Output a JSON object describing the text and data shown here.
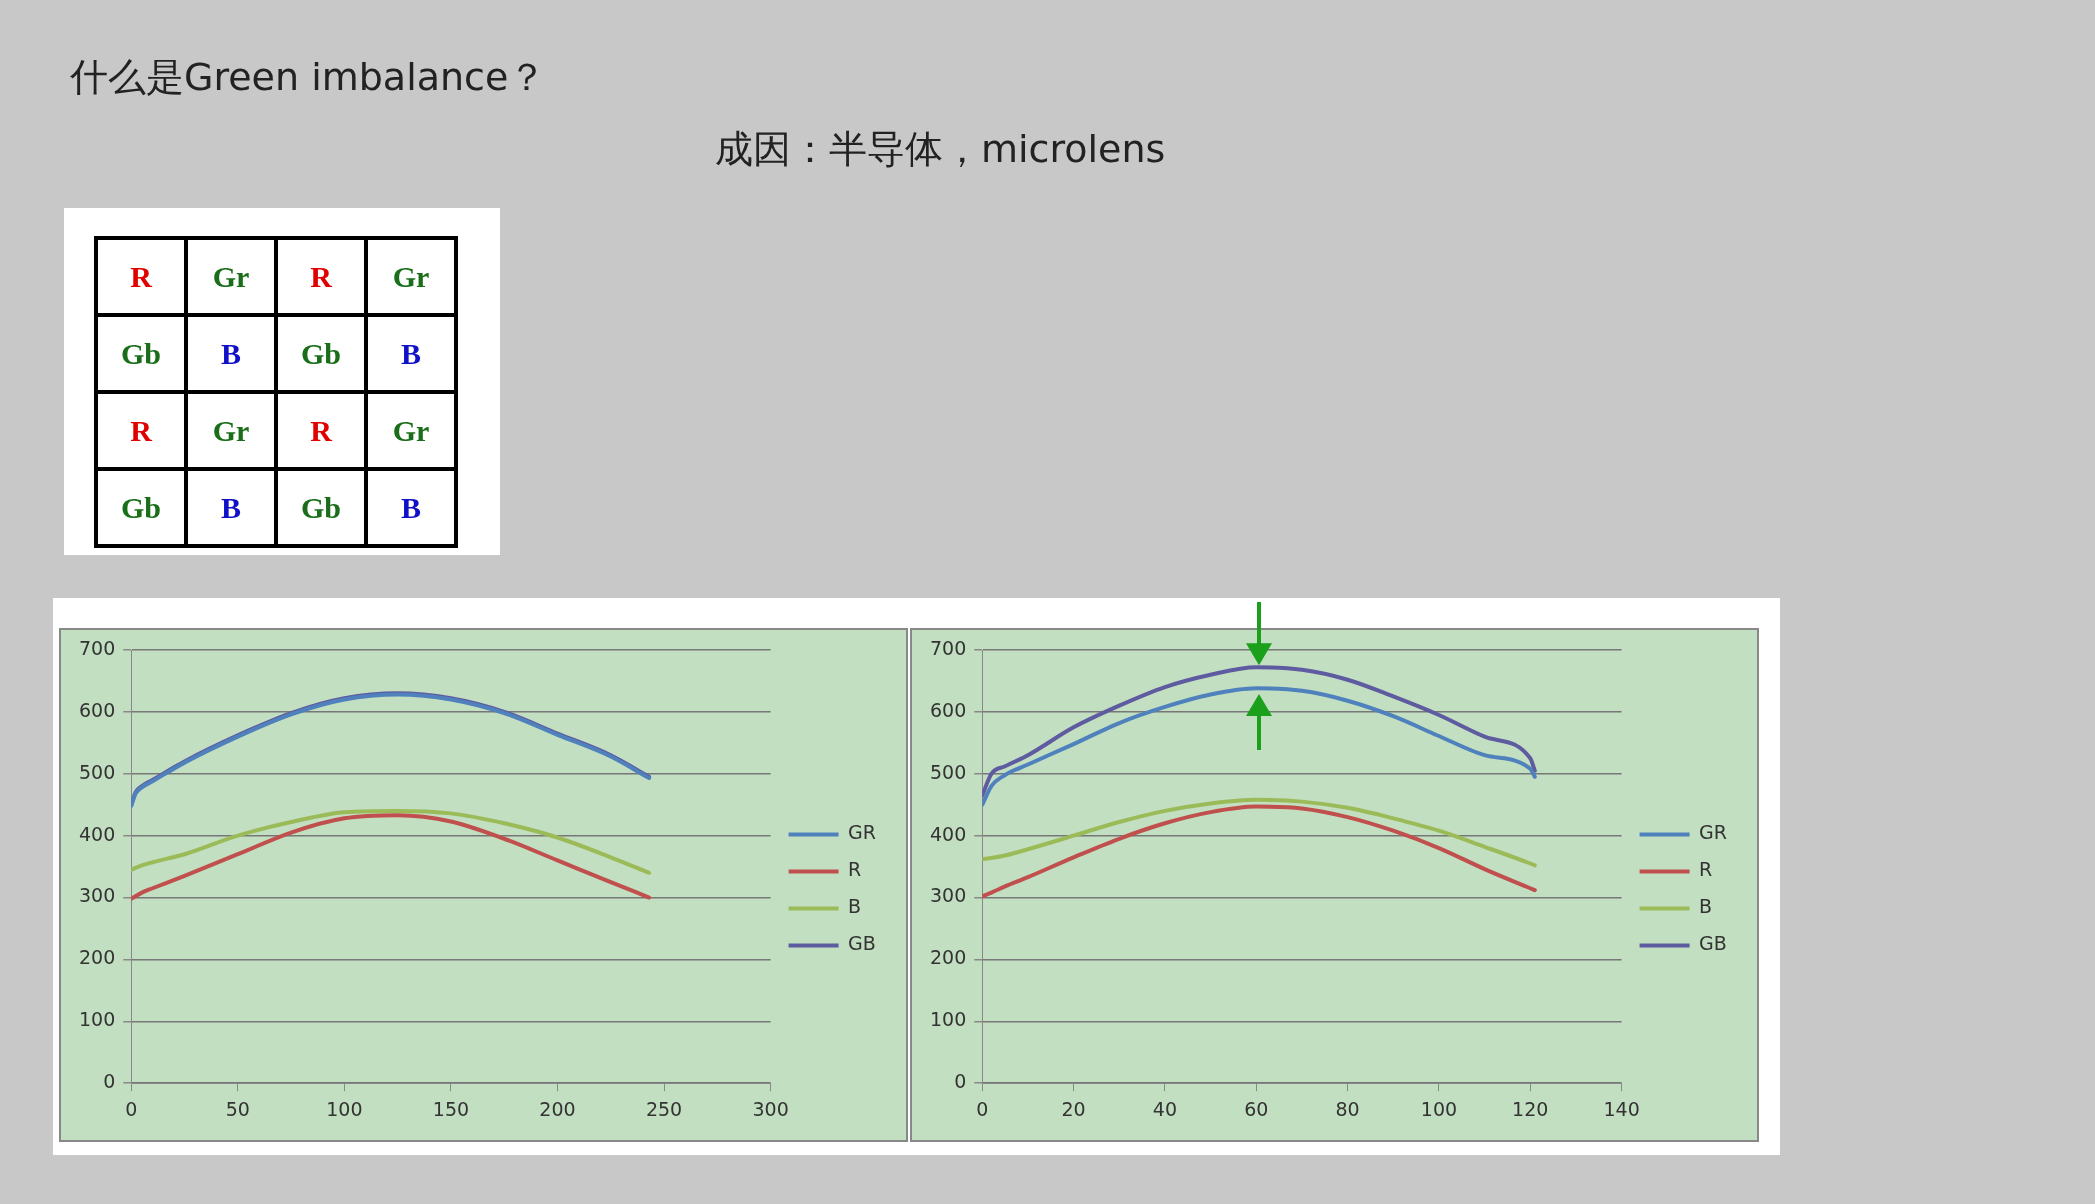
{
  "chart_data": [
    {
      "type": "other",
      "title": "什么是Green imbalance？",
      "subtitle": "成因：半导体，microlens",
      "annotations": [
        "R",
        "Gr",
        "R",
        "Gr",
        "Gb",
        "B",
        "Gb",
        "B",
        "R",
        "Gr",
        "R",
        "Gr",
        "Gb",
        "B",
        "Gb",
        "B"
      ],
      "colors": [
        "#e00000",
        "#1a6e1a",
        "#e00000",
        "#1a6e1a",
        "#1a6e1a",
        "#1010c8",
        "#1a6e1a",
        "#1010c8",
        "#e00000",
        "#1a6e1a",
        "#e00000",
        "#1a6e1a",
        "#1a6e1a",
        "#1010c8",
        "#1a6e1a",
        "#1010c8"
      ]
    },
    {
      "type": "line",
      "x": [
        0,
        2,
        5,
        10,
        25,
        50,
        75,
        100,
        125,
        150,
        175,
        200,
        225,
        243
      ],
      "series": [
        {
          "name": "GR",
          "color": "#4f81bd",
          "values": [
            448,
            468,
            478,
            488,
            518,
            560,
            596,
            620,
            628,
            620,
            598,
            563,
            528,
            493
          ]
        },
        {
          "name": "R",
          "color": "#c0504d",
          "values": [
            298,
            302,
            308,
            315,
            335,
            370,
            405,
            428,
            433,
            423,
            395,
            360,
            325,
            300
          ]
        },
        {
          "name": "B",
          "color": "#9bbb59",
          "values": [
            345,
            348,
            352,
            357,
            370,
            400,
            422,
            438,
            440,
            436,
            420,
            397,
            365,
            340
          ]
        },
        {
          "name": "GB",
          "color": "#5f5ba0",
          "values": [
            450,
            470,
            480,
            490,
            520,
            562,
            598,
            622,
            630,
            622,
            600,
            565,
            530,
            495
          ]
        }
      ],
      "xlim": [
        0,
        300
      ],
      "xticks": [
        0,
        50,
        100,
        150,
        200,
        250,
        300
      ],
      "ylim": [
        0,
        700
      ],
      "yticks": [
        0,
        100,
        200,
        300,
        400,
        500,
        600,
        700
      ],
      "grid": "y",
      "legend": "right",
      "marker": "none",
      "line_style": "solid"
    },
    {
      "type": "line",
      "x": [
        0,
        2,
        5,
        10,
        20,
        30,
        40,
        50,
        60,
        70,
        80,
        90,
        100,
        110,
        120,
        121
      ],
      "series": [
        {
          "name": "GR",
          "color": "#4f81bd",
          "values": [
            450,
            480,
            498,
            515,
            548,
            582,
            608,
            628,
            638,
            634,
            618,
            593,
            561,
            530,
            508,
            495
          ]
        },
        {
          "name": "R",
          "color": "#c0504d",
          "values": [
            302,
            308,
            318,
            333,
            365,
            395,
            420,
            438,
            447,
            444,
            430,
            408,
            380,
            346,
            315,
            312
          ]
        },
        {
          "name": "B",
          "color": "#9bbb59",
          "values": [
            362,
            364,
            368,
            378,
            400,
            422,
            440,
            452,
            458,
            455,
            445,
            428,
            408,
            382,
            355,
            352
          ]
        },
        {
          "name": "GB",
          "color": "#5f5ba0",
          "values": [
            465,
            500,
            512,
            530,
            575,
            610,
            640,
            660,
            672,
            668,
            652,
            625,
            595,
            560,
            525,
            505
          ]
        }
      ],
      "xlim": [
        0,
        140
      ],
      "xticks": [
        0,
        20,
        40,
        60,
        80,
        100,
        120,
        140
      ],
      "ylim": [
        0,
        700
      ],
      "yticks": [
        0,
        100,
        200,
        300,
        400,
        500,
        600,
        700
      ],
      "grid": "y",
      "legend": "right",
      "marker": "none",
      "line_style": "solid"
    }
  ]
}
